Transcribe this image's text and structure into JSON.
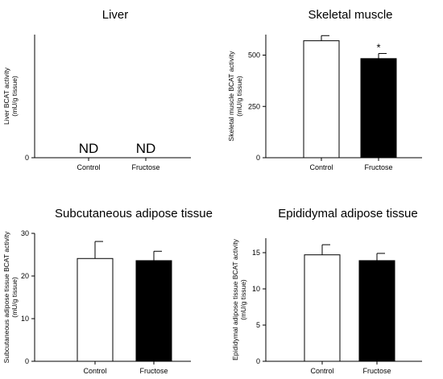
{
  "colors": {
    "control_fill": "#ffffff",
    "fructose_fill": "#000000",
    "axis": "#000000"
  },
  "chart_data": [
    {
      "type": "bar",
      "title": "Liver",
      "ylabel_lines": [
        "Liver BCAT activity",
        "(mU/g tissue)"
      ],
      "categories": [
        "Control",
        "Fructose"
      ],
      "values": [
        null,
        null
      ],
      "errors": [
        null,
        null
      ],
      "bar_labels": [
        "ND",
        "ND"
      ],
      "significance": [
        "",
        ""
      ],
      "yticks": [
        0
      ],
      "ylim": [
        0,
        600
      ],
      "grid": false
    },
    {
      "type": "bar",
      "title": "Skeletal muscle",
      "ylabel_lines": [
        "Skeletal muscle BCAT activity",
        "(mU/g tissue)"
      ],
      "categories": [
        "Control",
        "Fructose"
      ],
      "values": [
        570,
        483
      ],
      "errors": [
        25,
        25
      ],
      "bar_labels": [
        "",
        ""
      ],
      "significance": [
        "",
        "*"
      ],
      "yticks": [
        0,
        250,
        500
      ],
      "ylim": [
        0,
        600
      ],
      "grid": false
    },
    {
      "type": "bar",
      "title": "Subcutaneous adipose tissue",
      "ylabel_lines": [
        "Subcutaneous adipose tissue BCAT activity",
        "(mU/g tissue)"
      ],
      "categories": [
        "Control",
        "Fructose"
      ],
      "values": [
        24.1,
        23.6
      ],
      "errors": [
        4.0,
        2.2
      ],
      "bar_labels": [
        "",
        ""
      ],
      "significance": [
        "",
        ""
      ],
      "yticks": [
        0,
        10,
        20,
        30
      ],
      "ylim": [
        0,
        30
      ],
      "grid": false
    },
    {
      "type": "bar",
      "title": "Epididymal adipose tissue",
      "ylabel_lines": [
        "Epididymal adipose tissue BCAT activity",
        "(mU/g tissue)"
      ],
      "categories": [
        "Control",
        "Fructose"
      ],
      "values": [
        14.7,
        13.9
      ],
      "errors": [
        1.4,
        1.0
      ],
      "bar_labels": [
        "",
        ""
      ],
      "significance": [
        "",
        ""
      ],
      "yticks": [
        0,
        5,
        10,
        15
      ],
      "ylim": [
        0,
        17
      ],
      "grid": false
    }
  ]
}
